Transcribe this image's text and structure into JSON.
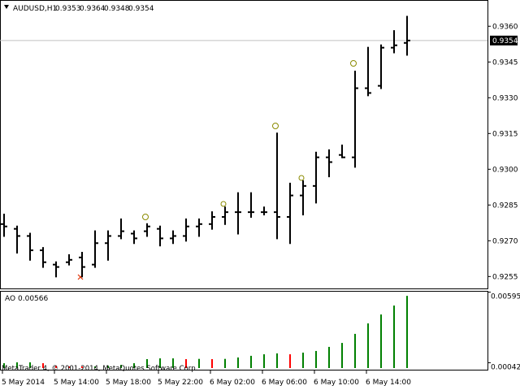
{
  "chart_data": [
    {
      "type": "ohlc",
      "title": "AUDUSD,H1",
      "color": "#000000",
      "categories": [
        "5 May 2014",
        null,
        null,
        null,
        "5 May 14:00",
        null,
        null,
        null,
        "5 May 18:00",
        null,
        null,
        null,
        "5 May 22:00",
        null,
        null,
        null,
        "6 May 02:00",
        null,
        null,
        null,
        "6 May 06:00",
        null,
        null,
        null,
        "6 May 10:00",
        null,
        null,
        null,
        "6 May 14:00",
        null,
        null,
        null
      ],
      "open": [
        0.9277,
        0.9275,
        0.9272,
        0.9266,
        0.926,
        0.9261,
        0.9263,
        0.926,
        0.9269,
        0.9272,
        0.9273,
        0.9274,
        0.9275,
        0.9271,
        0.9272,
        0.9276,
        0.9277,
        0.928,
        0.9282,
        0.9282,
        0.9282,
        0.9282,
        0.928,
        0.9289,
        0.9293,
        0.9305,
        0.9306,
        0.9305,
        0.9334,
        0.9335,
        0.9351,
        0.9353
      ],
      "high": [
        0.9281,
        0.9276,
        0.9273,
        0.9267,
        0.9261,
        0.9264,
        0.9265,
        0.9274,
        0.9274,
        0.9279,
        0.9274,
        0.9277,
        0.9276,
        0.9274,
        0.9279,
        0.9279,
        0.9282,
        0.9284,
        0.929,
        0.929,
        0.9284,
        0.9315,
        0.9294,
        0.9295,
        0.9307,
        0.9308,
        0.931,
        0.9341,
        0.9351,
        0.9352,
        0.9358,
        0.9364
      ],
      "low": [
        0.9272,
        0.9265,
        0.9262,
        0.9259,
        0.9255,
        0.926,
        0.9255,
        0.9259,
        0.9262,
        0.9271,
        0.9269,
        0.9272,
        0.9268,
        0.9269,
        0.927,
        0.9272,
        0.9275,
        0.9277,
        0.9273,
        0.928,
        0.9281,
        0.9271,
        0.9269,
        0.9281,
        0.9286,
        0.9297,
        0.9305,
        0.9301,
        0.9331,
        0.9334,
        0.9349,
        0.9348
      ],
      "close": [
        0.9276,
        0.9272,
        0.9266,
        0.9261,
        0.9259,
        0.9262,
        0.9259,
        0.9269,
        0.9272,
        0.9274,
        0.9271,
        0.9276,
        0.9271,
        0.9272,
        0.9276,
        0.9277,
        0.928,
        0.9282,
        0.9282,
        0.9282,
        0.9282,
        0.928,
        0.9289,
        0.9293,
        0.9305,
        0.9303,
        0.9305,
        0.9334,
        0.9332,
        0.9351,
        0.9352,
        0.9354
      ],
      "ylim": [
        0.925,
        0.9371
      ],
      "yticks": [
        {
          "value": 0.936,
          "label": "0.9360"
        },
        0.9345,
        {
          "value": 0.933,
          "label": "0.9330"
        },
        0.9315,
        {
          "value": 0.93,
          "label": "0.9300"
        },
        0.9285,
        {
          "value": 0.927,
          "label": "0.9270"
        },
        0.9255
      ]
    },
    {
      "type": "bar",
      "title": "AO",
      "annotation": "MetaTrader 4, © 2001-2014, MetaQuotes Software Corp.",
      "values": [
        0.00038,
        0.00045,
        0.00045,
        0.00038,
        0.00019,
        0.00013,
        0.00013,
        0.00013,
        0.00019,
        0.00025,
        0.00038,
        0.0007,
        0.00076,
        0.00076,
        0.0007,
        0.00072,
        0.0007,
        0.00072,
        0.00083,
        0.00096,
        0.00108,
        0.00115,
        0.00108,
        0.00121,
        0.00134,
        0.00166,
        0.00197,
        0.00268,
        0.0035,
        0.0042,
        0.0049,
        0.00566
      ],
      "colors": [
        "#008000",
        "#008000",
        "#008000",
        "#ff0000",
        "#ff0000",
        "#ff0000",
        "#ff0000",
        "#008000",
        "#008000",
        "#008000",
        "#008000",
        "#008000",
        "#008000",
        "#008000",
        "#ff0000",
        "#008000",
        "#ff0000",
        "#008000",
        "#008000",
        "#008000",
        "#008000",
        "#008000",
        "#ff0000",
        "#008000",
        "#008000",
        "#008000",
        "#008000",
        "#008000",
        "#008000",
        "#008000",
        "#008000",
        "#008000"
      ],
      "ylim": [
        0,
        0.00605
      ],
      "yticks": [
        0.00595,
        0.00042
      ]
    }
  ]
}
